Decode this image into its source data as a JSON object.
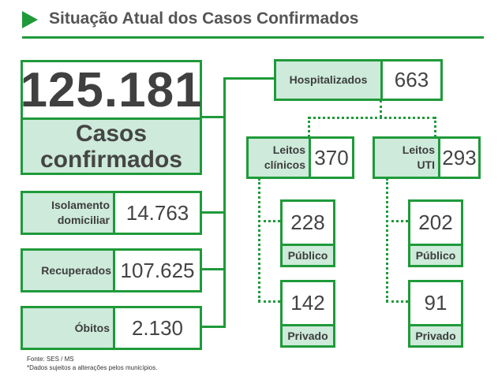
{
  "header": {
    "title": "Situação Atual dos Casos Confirmados"
  },
  "confirmed": {
    "value": "125.181",
    "label_line1": "Casos",
    "label_line2": "confirmados"
  },
  "isolation": {
    "label_line1": "Isolamento",
    "label_line2": "domiciliar",
    "value": "14.763"
  },
  "recovered": {
    "label": "Recuperados",
    "value": "107.625"
  },
  "deaths": {
    "label": "Óbitos",
    "value": "2.130"
  },
  "hospitalized": {
    "label": "Hospitalizados",
    "value": "663"
  },
  "clinical_beds": {
    "label_line1": "Leitos",
    "label_line2": "clínicos",
    "value": "370",
    "public": {
      "value": "228",
      "label": "Público"
    },
    "private": {
      "value": "142",
      "label": "Privado"
    }
  },
  "icu_beds": {
    "label_line1": "Leitos",
    "label_line2": "UTI",
    "value": "293",
    "public": {
      "value": "202",
      "label": "Público"
    },
    "private": {
      "value": "91",
      "label": "Privado"
    }
  },
  "footer": {
    "source": "Fonte: SES / MS",
    "note": "*Dados sujeitos a alterações pelos municípios."
  },
  "colors": {
    "accent": "#1f9a3a",
    "fill": "#cdeada",
    "text": "#444444"
  }
}
